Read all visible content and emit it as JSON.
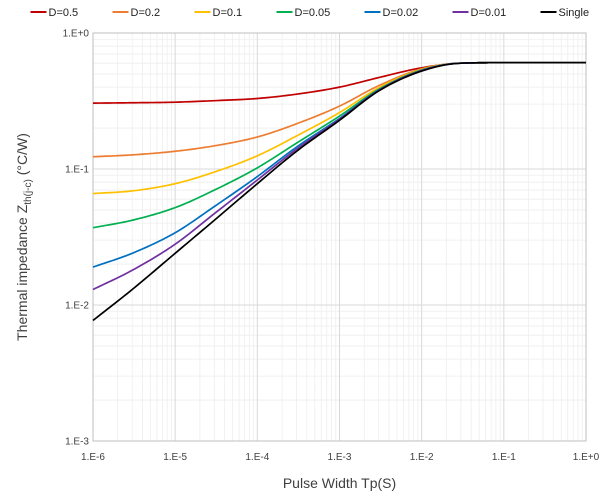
{
  "chart_data": {
    "type": "line",
    "xscale": "log",
    "yscale": "log",
    "xlim": [
      1e-06,
      1
    ],
    "ylim": [
      0.001,
      1
    ],
    "xlabel": "Pulse Width Tp(S)",
    "ylabel": "Thermal impedance Z",
    "ylabel_sub": "th(j-c)",
    "ylabel_unit": " (°C/W)",
    "xticks": [
      "1.E-6",
      "1.E-5",
      "1.E-4",
      "1.E-3",
      "1.E-2",
      "1.E-1",
      "1.E+0"
    ],
    "yticks": [
      "1.E-3",
      "1.E-2",
      "1.E-1",
      "1.E+0"
    ],
    "grid": true,
    "legend_position": "top",
    "series": [
      {
        "name": "D=0.5",
        "color": "#c00000",
        "x": [
          1e-06,
          3e-06,
          1e-05,
          3e-05,
          0.0001,
          0.0003,
          0.001,
          0.003,
          0.01,
          0.03,
          0.1,
          1
        ],
        "y": [
          0.305,
          0.307,
          0.31,
          0.318,
          0.33,
          0.355,
          0.4,
          0.47,
          0.555,
          0.6,
          0.605,
          0.605
        ]
      },
      {
        "name": "D=0.2",
        "color": "#ed7d31",
        "x": [
          1e-06,
          3e-06,
          1e-05,
          3e-05,
          0.0001,
          0.0003,
          0.001,
          0.003,
          0.01,
          0.03,
          0.1,
          1
        ],
        "y": [
          0.123,
          0.127,
          0.135,
          0.148,
          0.172,
          0.215,
          0.29,
          0.41,
          0.545,
          0.6,
          0.605,
          0.605
        ]
      },
      {
        "name": "D=0.1",
        "color": "#ffc000",
        "x": [
          1e-06,
          3e-06,
          1e-05,
          3e-05,
          0.0001,
          0.0003,
          0.001,
          0.003,
          0.01,
          0.03,
          0.1,
          1
        ],
        "y": [
          0.066,
          0.069,
          0.078,
          0.095,
          0.125,
          0.175,
          0.26,
          0.395,
          0.54,
          0.6,
          0.605,
          0.605
        ]
      },
      {
        "name": "D=0.05",
        "color": "#00b050",
        "x": [
          1e-06,
          3e-06,
          1e-05,
          3e-05,
          0.0001,
          0.0003,
          0.001,
          0.003,
          0.01,
          0.03,
          0.1,
          1
        ],
        "y": [
          0.037,
          0.042,
          0.052,
          0.07,
          0.102,
          0.155,
          0.245,
          0.385,
          0.535,
          0.6,
          0.605,
          0.605
        ]
      },
      {
        "name": "D=0.02",
        "color": "#0070c0",
        "x": [
          1e-06,
          3e-06,
          1e-05,
          3e-05,
          0.0001,
          0.0003,
          0.001,
          0.003,
          0.01,
          0.03,
          0.1,
          1
        ],
        "y": [
          0.019,
          0.024,
          0.034,
          0.053,
          0.088,
          0.145,
          0.235,
          0.38,
          0.53,
          0.6,
          0.605,
          0.605
        ]
      },
      {
        "name": "D=0.01",
        "color": "#7030a0",
        "x": [
          1e-06,
          3e-06,
          1e-05,
          3e-05,
          0.0001,
          0.0003,
          0.001,
          0.003,
          0.01,
          0.03,
          0.1,
          1
        ],
        "y": [
          0.013,
          0.018,
          0.028,
          0.047,
          0.083,
          0.14,
          0.232,
          0.378,
          0.53,
          0.6,
          0.605,
          0.605
        ]
      },
      {
        "name": "Single",
        "color": "#000000",
        "x": [
          1e-06,
          3e-06,
          1e-05,
          3e-05,
          0.0001,
          0.0003,
          0.001,
          0.003,
          0.01,
          0.03,
          0.1,
          1
        ],
        "y": [
          0.0077,
          0.013,
          0.024,
          0.042,
          0.078,
          0.135,
          0.228,
          0.375,
          0.525,
          0.6,
          0.605,
          0.605
        ]
      }
    ]
  }
}
